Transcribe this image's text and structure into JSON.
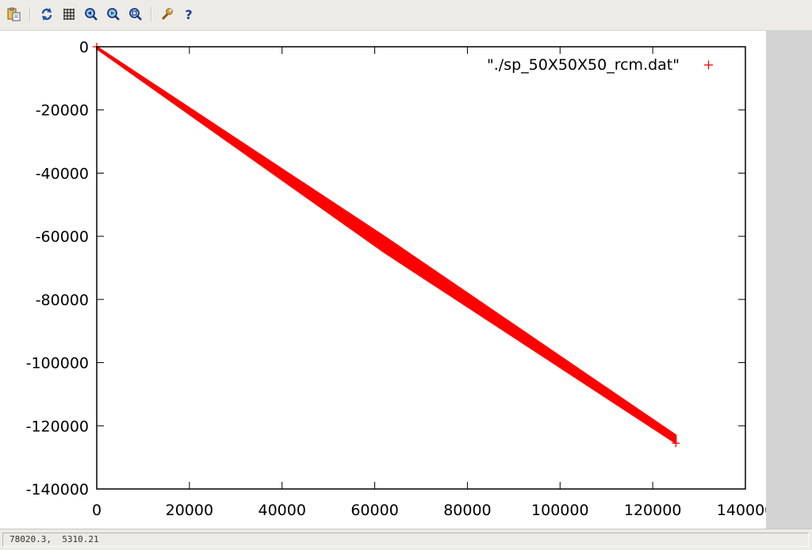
{
  "toolbar": {
    "buttons": [
      {
        "name": "copy-clipboard-icon",
        "tooltip": ""
      },
      {
        "name": "replot-icon"
      },
      {
        "name": "grid-icon"
      },
      {
        "name": "zoom-previous-icon"
      },
      {
        "name": "zoom-next-icon"
      },
      {
        "name": "unzoom-icon"
      },
      {
        "name": "options-wrench-icon"
      },
      {
        "name": "help-icon"
      }
    ]
  },
  "status": {
    "coords": "78020.3,  5310.21"
  },
  "colors": {
    "series": "#ff0000",
    "axis": "#000000",
    "toolbar_bg": "#edebe6",
    "side_panel": "#d3d3d3"
  },
  "chart_data": {
    "type": "scatter",
    "title": "",
    "xlabel": "",
    "ylabel": "",
    "xlim": [
      0,
      140000
    ],
    "ylim": [
      -140000,
      0
    ],
    "x_ticks": [
      "0",
      "20000",
      "40000",
      "60000",
      "80000",
      "100000",
      "120000",
      "140000"
    ],
    "y_ticks": [
      "0",
      "-20000",
      "-40000",
      "-60000",
      "-80000",
      "-100000",
      "-120000",
      "-140000"
    ],
    "grid": false,
    "legend_position": "top-right",
    "series": [
      {
        "name": "\"./sp_50X50X50_rcm.dat\"",
        "marker": "+",
        "color": "#ff0000",
        "description": "dense band of points along the diagonal",
        "band_upper": [
          [
            0,
            0
          ],
          [
            62000,
            -60000
          ],
          [
            125000,
            -123000
          ]
        ],
        "band_lower": [
          [
            0,
            -600
          ],
          [
            62000,
            -65000
          ],
          [
            125000,
            -125500
          ]
        ]
      }
    ]
  }
}
